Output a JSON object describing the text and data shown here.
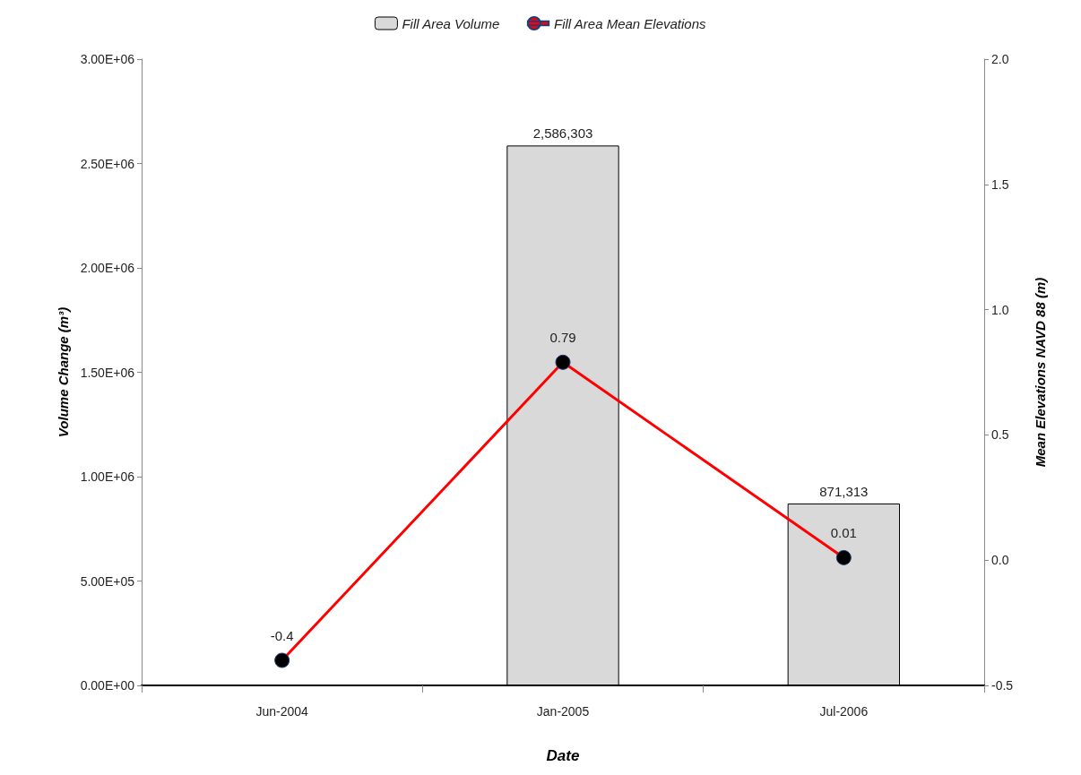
{
  "chart_data": {
    "type": "bar",
    "xlabel": "Date",
    "ylabel": "Volume Change (m³)",
    "y2label": "Mean Elevations NAVD 88 (m)",
    "categories": [
      "Jun-2004",
      "Jan-2005",
      "Jul-2006"
    ],
    "series": [
      {
        "name": "Fill Area Volume",
        "color": "#d9d9d9",
        "values": [
          null,
          2586303,
          871313
        ],
        "value_labels": [
          null,
          "2,586,303",
          "871,313"
        ]
      },
      {
        "name": "Fill Area Mean Elevations",
        "type": "line",
        "axis": "y2",
        "color": "#ff0000",
        "values": [
          -0.4,
          0.79,
          0.01
        ],
        "value_labels": [
          "-0.4",
          "0.79",
          "0.01"
        ]
      }
    ],
    "ylim": [
      0,
      3000000
    ],
    "yticks": [
      {
        "value": 0,
        "label": "0.00E+00"
      },
      {
        "value": 500000,
        "label": "5.00E+05"
      },
      {
        "value": 1000000,
        "label": "1.00E+06"
      },
      {
        "value": 1500000,
        "label": "1.50E+06"
      },
      {
        "value": 2000000,
        "label": "2.00E+06"
      },
      {
        "value": 2500000,
        "label": "2.50E+06"
      },
      {
        "value": 3000000,
        "label": "3.00E+06"
      }
    ],
    "y2lim": [
      -0.5,
      2
    ],
    "y2ticks": [
      -0.5,
      {
        "value": 0,
        "label": "0.0"
      },
      0.5,
      {
        "value": 1,
        "label": "1.0"
      },
      1.5,
      {
        "value": 2,
        "label": "2.0"
      }
    ],
    "grid": false,
    "legend": "top",
    "marker": "circle",
    "line_style": "solid"
  }
}
